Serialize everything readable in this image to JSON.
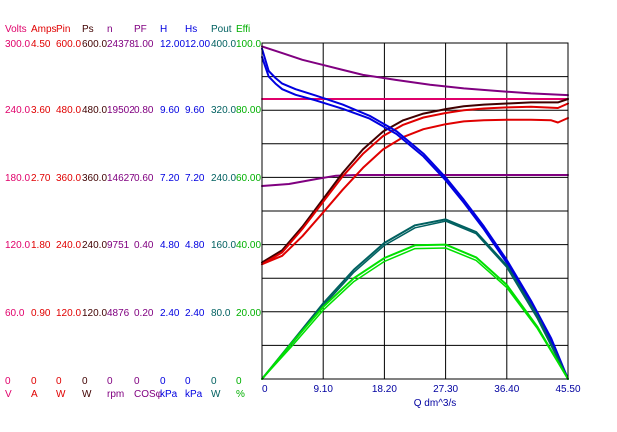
{
  "chart_data": {
    "type": "line",
    "xlabel": "Q  dm^3/s",
    "xlim": [
      0,
      45.5
    ],
    "xticks": [
      "0",
      "9.10",
      "18.20",
      "27.30",
      "36.40",
      "45.50"
    ],
    "axes": [
      {
        "id": "volts",
        "header": "Volts",
        "unit": "V",
        "color": "#e0006a",
        "ticks": [
          "300.0",
          "240.0",
          "180.0",
          "120.0",
          "60.0",
          "0"
        ]
      },
      {
        "id": "amps",
        "header": "Amps",
        "unit": "A",
        "color": "#e00000",
        "ticks": [
          "4.50",
          "3.60",
          "2.70",
          "1.80",
          "0.90",
          "0"
        ]
      },
      {
        "id": "pin",
        "header": "Pin",
        "unit": "W",
        "color": "#e00000",
        "ticks": [
          "600.0",
          "480.0",
          "360.0",
          "240.0",
          "120.0",
          "0"
        ]
      },
      {
        "id": "ps",
        "header": "Ps",
        "unit": "W",
        "color": "#400000",
        "ticks": [
          "600.0",
          "480.0",
          "360.0",
          "240.0",
          "120.0",
          "0"
        ]
      },
      {
        "id": "n",
        "header": "n",
        "unit": "rpm",
        "color": "#800080",
        "ticks": [
          "24378",
          "19502",
          "14627",
          "9751",
          "4876",
          "0"
        ]
      },
      {
        "id": "pf",
        "header": "PF",
        "unit": "COSφ",
        "color": "#800080",
        "ticks": [
          "1.00",
          "0.80",
          "0.60",
          "0.40",
          "0.20",
          "0"
        ]
      },
      {
        "id": "h",
        "header": "H",
        "unit": "kPa",
        "color": "#0000e0",
        "ticks": [
          "12.00",
          "9.60",
          "7.20",
          "4.80",
          "2.40",
          "0"
        ]
      },
      {
        "id": "hs",
        "header": "Hs",
        "unit": "kPa",
        "color": "#0000e0",
        "ticks": [
          "12.00",
          "9.60",
          "7.20",
          "4.80",
          "2.40",
          "0"
        ]
      },
      {
        "id": "pout",
        "header": "Pout",
        "unit": "W",
        "color": "#006060",
        "ticks": [
          "400.0",
          "320.0",
          "240.0",
          "160.0",
          "80.0",
          "0"
        ]
      },
      {
        "id": "effi",
        "header": "Effi",
        "unit": "%",
        "color": "#00b000",
        "ticks": [
          "100.0",
          "80.00",
          "60.00",
          "40.00",
          "20.00",
          "0"
        ]
      }
    ],
    "series": [
      {
        "color": "#e0006a",
        "width": 2,
        "x": [
          0,
          45.5
        ],
        "y": [
          250,
          250
        ]
      },
      {
        "color": "#800080",
        "width": 2,
        "x": [
          0,
          3,
          6,
          9,
          12,
          15,
          20,
          25,
          30,
          35,
          40,
          45.5
        ],
        "y": [
          0.99,
          0.97,
          0.95,
          0.935,
          0.92,
          0.905,
          0.89,
          0.876,
          0.865,
          0.857,
          0.85,
          0.845
        ]
      },
      {
        "color": "#800080",
        "width": 2,
        "x": [
          0,
          4,
          8,
          11,
          14,
          18,
          25,
          35,
          45.5
        ],
        "y": [
          14000,
          14150,
          14500,
          14750,
          14800,
          14800,
          14800,
          14800,
          14800
        ]
      },
      {
        "color": "#400000",
        "width": 2,
        "x": [
          0,
          3,
          6,
          9,
          12,
          15,
          18,
          21,
          24,
          27.3,
          30,
          33,
          36.4,
          40,
          44,
          45.5
        ],
        "y": [
          208,
          230,
          272,
          320,
          368,
          410,
          442,
          462,
          474,
          482,
          487,
          490,
          492,
          494,
          494,
          500
        ]
      },
      {
        "color": "#e00000",
        "width": 2,
        "x": [
          0,
          3,
          6,
          9,
          12,
          15,
          18,
          21,
          24,
          27.3,
          30,
          33,
          36.4,
          40,
          44,
          45.5
        ],
        "y": [
          205,
          226,
          268,
          315,
          362,
          402,
          434,
          454,
          467,
          475,
          480,
          483,
          485,
          486,
          484,
          492
        ]
      },
      {
        "color": "#e00000",
        "width": 2,
        "x": [
          0,
          3,
          6,
          9,
          12,
          15,
          18,
          21,
          24,
          27.3,
          30,
          33,
          36.4,
          40,
          43,
          44,
          45.5
        ],
        "y": [
          205,
          220,
          255,
          296,
          338,
          377,
          410,
          432,
          446,
          455,
          460,
          462,
          463,
          463,
          462,
          458,
          466
        ]
      },
      {
        "color": "#0000e0",
        "width": 2,
        "x": [
          0,
          1,
          2,
          3,
          5,
          8,
          12,
          16,
          20,
          24,
          27.3,
          30,
          33,
          36.4,
          40,
          43,
          45.5
        ],
        "y": [
          11.8,
          11.0,
          10.75,
          10.55,
          10.35,
          10.12,
          9.8,
          9.4,
          8.85,
          8.05,
          7.2,
          6.4,
          5.45,
          4.25,
          2.8,
          1.45,
          0
        ]
      },
      {
        "color": "#0000e0",
        "width": 2,
        "x": [
          0,
          1,
          2,
          3,
          5,
          8,
          12,
          16,
          20,
          24,
          27.3,
          30,
          33,
          36.4,
          40,
          43,
          45.5
        ],
        "y": [
          11.5,
          10.8,
          10.55,
          10.35,
          10.15,
          9.95,
          9.65,
          9.3,
          8.75,
          7.95,
          7.1,
          6.3,
          5.35,
          4.15,
          2.7,
          1.35,
          0
        ]
      },
      {
        "color": "#006060",
        "width": 2,
        "x": [
          0,
          4.55,
          9.1,
          13.65,
          18.2,
          22.75,
          27.3,
          31.85,
          36.4,
          40.95,
          45.5
        ],
        "y": [
          0,
          45,
          90,
          130,
          162,
          183,
          190,
          175,
          135,
          75,
          0
        ]
      },
      {
        "color": "#006060",
        "width": 1.5,
        "x": [
          0,
          4.55,
          9.1,
          13.65,
          18.2,
          22.75,
          27.3,
          31.85,
          36.4,
          40.95,
          45.5
        ],
        "y": [
          0,
          43,
          87,
          127,
          159,
          180,
          188,
          173,
          133,
          72,
          0
        ]
      },
      {
        "color": "#00e000",
        "width": 2,
        "x": [
          0,
          4.55,
          9.1,
          13.65,
          18.2,
          22.75,
          27.3,
          31.85,
          36.4,
          40.95,
          45.5
        ],
        "y": [
          0,
          11,
          21.5,
          30,
          36,
          39.8,
          40,
          36.2,
          28,
          15.5,
          0
        ]
      },
      {
        "color": "#00e000",
        "width": 1.5,
        "x": [
          0,
          4.55,
          9.1,
          13.65,
          18.2,
          22.75,
          27.3,
          31.85,
          36.4,
          40.95,
          45.5
        ],
        "y": [
          0,
          10,
          20.5,
          29,
          35,
          38.8,
          39,
          35.3,
          27.2,
          15,
          0
        ]
      }
    ]
  }
}
